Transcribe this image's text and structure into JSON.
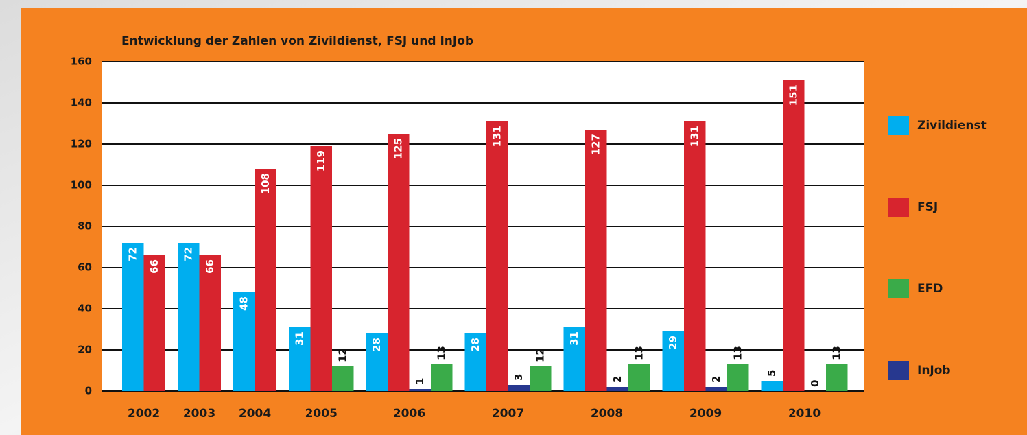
{
  "chart_data": {
    "type": "bar",
    "title": "Entwicklung der Zahlen von Zivildienst, FSJ und InJob",
    "categories": [
      "2002",
      "2003",
      "2004",
      "2005",
      "2006",
      "2007",
      "2008",
      "2009",
      "2010"
    ],
    "series": [
      {
        "name": "Zivildienst",
        "color": "#00aeef",
        "values": [
          72,
          72,
          48,
          31,
          28,
          28,
          31,
          29,
          5
        ]
      },
      {
        "name": "FSJ",
        "color": "#d7242e",
        "values": [
          66,
          66,
          108,
          119,
          125,
          131,
          127,
          131,
          151
        ]
      },
      {
        "name": "EFD",
        "color": "#3aab49",
        "values": [
          null,
          null,
          null,
          12,
          13,
          12,
          13,
          13,
          13
        ]
      },
      {
        "name": "InJob",
        "color": "#27388f",
        "values": [
          null,
          null,
          null,
          null,
          1,
          3,
          2,
          2,
          0
        ]
      }
    ],
    "ylim": [
      0,
      160
    ],
    "yticks": [
      0,
      20,
      40,
      60,
      80,
      100,
      120,
      140,
      160
    ],
    "grid": true
  }
}
